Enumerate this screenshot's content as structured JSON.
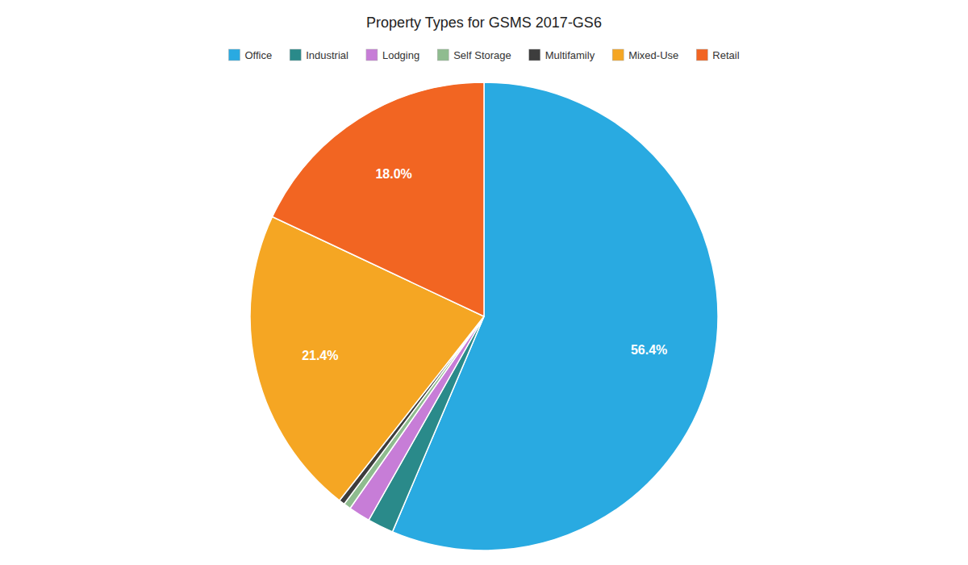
{
  "chart_data": {
    "type": "pie",
    "title": "Property Types for GSMS 2017-GS6",
    "categories": [
      "Office",
      "Industrial",
      "Lodging",
      "Self Storage",
      "Multifamily",
      "Mixed-Use",
      "Retail"
    ],
    "values": [
      56.4,
      1.8,
      1.5,
      0.5,
      0.4,
      21.4,
      18.0
    ],
    "value_labels": [
      "56.4%",
      null,
      null,
      null,
      null,
      "21.4%",
      "18.0%"
    ],
    "colors": [
      "#29aae1",
      "#2a8a8a",
      "#c77dd7",
      "#8fbc8f",
      "#3d3d3d",
      "#f5a623",
      "#f26522"
    ],
    "data_labels": true,
    "legend": "top"
  }
}
